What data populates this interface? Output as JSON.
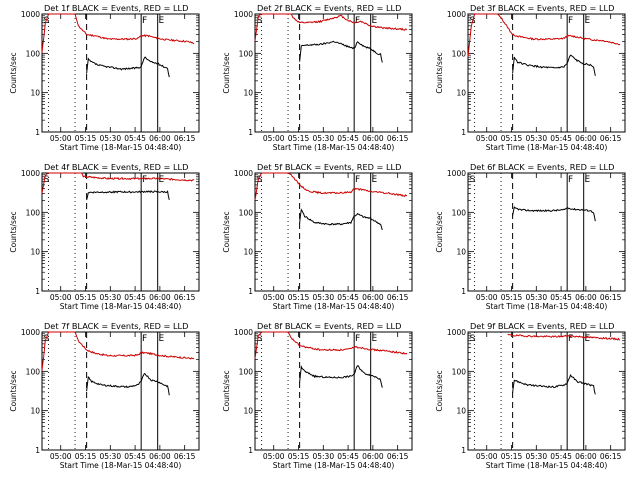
{
  "chart_data": {
    "type": "line",
    "common": {
      "title_suffix": "BLACK = Events, RED = LLD",
      "ylabel": "Counts/sec",
      "xlabel": "Start Time (18-Mar-15 04:48:40)",
      "x_units": "minutes after 04:48:40",
      "xlim": [
        0,
        95
      ],
      "ylim": [
        1,
        1000
      ],
      "y_scale": "log",
      "y_ticks": [
        1,
        10,
        100,
        1000
      ],
      "y_tick_labels": [
        "1",
        "10",
        "100",
        "1000"
      ],
      "x_tick_values": [
        11.33,
        26.33,
        41.33,
        56.33,
        71.33,
        86.33
      ],
      "x_tick_labels": [
        "05:00",
        "05:15",
        "05:30",
        "05:45",
        "06:00",
        "06:15"
      ],
      "dotted_lines_x": [
        4,
        20
      ],
      "dashed_line_x": [
        27
      ],
      "solid_lines_x": [
        60,
        70
      ],
      "markers": [
        {
          "label": "S",
          "x": 1
        },
        {
          "label": "F",
          "x": 60.5
        },
        {
          "label": "E",
          "x": 70.5
        }
      ]
    },
    "series_colors": {
      "events": "#000000",
      "lld": "#cc0000"
    },
    "panels": [
      {
        "title": "Det 1f BLACK = Events, RED = LLD",
        "lld": [
          [
            0,
            100
          ],
          [
            2,
            600
          ],
          [
            4,
            1000
          ],
          [
            20,
            1000
          ],
          [
            22,
            500
          ],
          [
            27,
            300
          ],
          [
            32,
            280
          ],
          [
            40,
            230
          ],
          [
            52,
            230
          ],
          [
            58,
            240
          ],
          [
            60,
            280
          ],
          [
            64,
            280
          ],
          [
            70,
            240
          ],
          [
            76,
            220
          ],
          [
            82,
            210
          ],
          [
            88,
            200
          ],
          [
            92,
            180
          ]
        ],
        "events": [
          [
            27,
            30
          ],
          [
            28,
            70
          ],
          [
            30,
            60
          ],
          [
            34,
            50
          ],
          [
            40,
            45
          ],
          [
            48,
            40
          ],
          [
            56,
            42
          ],
          [
            60,
            45
          ],
          [
            62,
            80
          ],
          [
            66,
            60
          ],
          [
            70,
            55
          ],
          [
            74,
            45
          ],
          [
            76,
            42
          ],
          [
            77,
            25
          ]
        ]
      },
      {
        "title": "Det 2f BLACK = Events, RED = LLD",
        "lld": [
          [
            0,
            200
          ],
          [
            2,
            900
          ],
          [
            4,
            1000
          ],
          [
            22,
            1000
          ],
          [
            23,
            800
          ],
          [
            27,
            600
          ],
          [
            32,
            600
          ],
          [
            40,
            650
          ],
          [
            50,
            850
          ],
          [
            52,
            900
          ],
          [
            56,
            700
          ],
          [
            60,
            600
          ],
          [
            64,
            650
          ],
          [
            70,
            500
          ],
          [
            76,
            450
          ],
          [
            82,
            430
          ],
          [
            92,
            400
          ]
        ],
        "events": [
          [
            27,
            60
          ],
          [
            28,
            150
          ],
          [
            30,
            160
          ],
          [
            40,
            170
          ],
          [
            48,
            200
          ],
          [
            56,
            150
          ],
          [
            60,
            130
          ],
          [
            62,
            200
          ],
          [
            66,
            150
          ],
          [
            70,
            130
          ],
          [
            74,
            100
          ],
          [
            76,
            95
          ],
          [
            77,
            60
          ]
        ]
      },
      {
        "title": "Det 3f BLACK = Events, RED = LLD",
        "lld": [
          [
            0,
            80
          ],
          [
            2,
            500
          ],
          [
            4,
            1000
          ],
          [
            18,
            1000
          ],
          [
            20,
            800
          ],
          [
            27,
            300
          ],
          [
            32,
            260
          ],
          [
            40,
            230
          ],
          [
            52,
            230
          ],
          [
            58,
            240
          ],
          [
            60,
            280
          ],
          [
            64,
            270
          ],
          [
            70,
            240
          ],
          [
            76,
            220
          ],
          [
            82,
            210
          ],
          [
            92,
            170
          ]
        ],
        "events": [
          [
            27,
            30
          ],
          [
            28,
            80
          ],
          [
            30,
            60
          ],
          [
            36,
            50
          ],
          [
            44,
            45
          ],
          [
            52,
            42
          ],
          [
            58,
            45
          ],
          [
            60,
            55
          ],
          [
            62,
            90
          ],
          [
            66,
            65
          ],
          [
            70,
            55
          ],
          [
            74,
            50
          ],
          [
            76,
            45
          ],
          [
            77,
            28
          ]
        ]
      },
      {
        "title": "Det 4f BLACK = Events, RED = LLD",
        "lld": [
          [
            0,
            300
          ],
          [
            2,
            900
          ],
          [
            4,
            1000
          ],
          [
            24,
            1000
          ],
          [
            25,
            800
          ],
          [
            27,
            800
          ],
          [
            40,
            720
          ],
          [
            60,
            720
          ],
          [
            70,
            720
          ],
          [
            92,
            650
          ]
        ],
        "events": [
          [
            27,
            200
          ],
          [
            28,
            320
          ],
          [
            40,
            330
          ],
          [
            60,
            330
          ],
          [
            64,
            340
          ],
          [
            70,
            330
          ],
          [
            76,
            330
          ],
          [
            77,
            200
          ]
        ]
      },
      {
        "title": "Det 5f BLACK = Events, RED = LLD",
        "lld": [
          [
            0,
            200
          ],
          [
            2,
            700
          ],
          [
            4,
            1000
          ],
          [
            20,
            1000
          ],
          [
            22,
            900
          ],
          [
            27,
            500
          ],
          [
            32,
            350
          ],
          [
            40,
            310
          ],
          [
            52,
            310
          ],
          [
            58,
            330
          ],
          [
            60,
            400
          ],
          [
            64,
            380
          ],
          [
            70,
            340
          ],
          [
            76,
            320
          ],
          [
            82,
            300
          ],
          [
            92,
            260
          ]
        ],
        "events": [
          [
            27,
            50
          ],
          [
            28,
            120
          ],
          [
            30,
            80
          ],
          [
            36,
            55
          ],
          [
            44,
            50
          ],
          [
            52,
            50
          ],
          [
            58,
            55
          ],
          [
            60,
            80
          ],
          [
            62,
            90
          ],
          [
            66,
            75
          ],
          [
            70,
            70
          ],
          [
            74,
            55
          ],
          [
            76,
            50
          ],
          [
            77,
            35
          ]
        ]
      },
      {
        "title": "Det 6f BLACK = Events, RED = LLD",
        "lld": [],
        "events": [
          [
            27,
            80
          ],
          [
            28,
            130
          ],
          [
            32,
            115
          ],
          [
            40,
            110
          ],
          [
            50,
            110
          ],
          [
            58,
            115
          ],
          [
            60,
            130
          ],
          [
            64,
            120
          ],
          [
            70,
            115
          ],
          [
            74,
            110
          ],
          [
            76,
            100
          ],
          [
            77,
            60
          ]
        ]
      },
      {
        "title": "Det 7f BLACK = Events, RED = LLD",
        "lld": [
          [
            0,
            100
          ],
          [
            2,
            600
          ],
          [
            4,
            1000
          ],
          [
            20,
            1000
          ],
          [
            22,
            600
          ],
          [
            27,
            350
          ],
          [
            32,
            290
          ],
          [
            40,
            250
          ],
          [
            52,
            250
          ],
          [
            58,
            260
          ],
          [
            60,
            300
          ],
          [
            64,
            290
          ],
          [
            70,
            260
          ],
          [
            76,
            240
          ],
          [
            82,
            230
          ],
          [
            92,
            210
          ]
        ],
        "events": [
          [
            27,
            30
          ],
          [
            28,
            70
          ],
          [
            30,
            55
          ],
          [
            36,
            45
          ],
          [
            44,
            42
          ],
          [
            52,
            40
          ],
          [
            58,
            45
          ],
          [
            60,
            55
          ],
          [
            62,
            90
          ],
          [
            66,
            60
          ],
          [
            70,
            55
          ],
          [
            74,
            45
          ],
          [
            76,
            42
          ],
          [
            77,
            25
          ]
        ]
      },
      {
        "title": "Det 8f BLACK = Events, RED = LLD",
        "lld": [
          [
            0,
            200
          ],
          [
            2,
            800
          ],
          [
            4,
            1000
          ],
          [
            20,
            1000
          ],
          [
            22,
            700
          ],
          [
            27,
            450
          ],
          [
            32,
            400
          ],
          [
            40,
            350
          ],
          [
            52,
            350
          ],
          [
            58,
            370
          ],
          [
            60,
            420
          ],
          [
            64,
            400
          ],
          [
            70,
            360
          ],
          [
            76,
            340
          ],
          [
            82,
            320
          ],
          [
            92,
            280
          ]
        ],
        "events": [
          [
            27,
            50
          ],
          [
            28,
            130
          ],
          [
            30,
            100
          ],
          [
            36,
            75
          ],
          [
            44,
            70
          ],
          [
            52,
            70
          ],
          [
            58,
            75
          ],
          [
            60,
            85
          ],
          [
            62,
            140
          ],
          [
            66,
            90
          ],
          [
            70,
            80
          ],
          [
            74,
            70
          ],
          [
            76,
            60
          ],
          [
            77,
            40
          ]
        ]
      },
      {
        "title": "Det 9f BLACK = Events, RED = LLD",
        "lld": [
          [
            24,
            850
          ],
          [
            27,
            820
          ],
          [
            40,
            780
          ],
          [
            52,
            760
          ],
          [
            58,
            780
          ],
          [
            60,
            800
          ],
          [
            64,
            780
          ],
          [
            70,
            750
          ],
          [
            76,
            720
          ],
          [
            82,
            700
          ],
          [
            92,
            650
          ]
        ],
        "events": [
          [
            27,
            30
          ],
          [
            28,
            60
          ],
          [
            30,
            55
          ],
          [
            36,
            45
          ],
          [
            44,
            42
          ],
          [
            52,
            40
          ],
          [
            58,
            45
          ],
          [
            60,
            50
          ],
          [
            62,
            80
          ],
          [
            66,
            55
          ],
          [
            70,
            50
          ],
          [
            74,
            45
          ],
          [
            76,
            42
          ],
          [
            77,
            25
          ]
        ]
      }
    ]
  }
}
